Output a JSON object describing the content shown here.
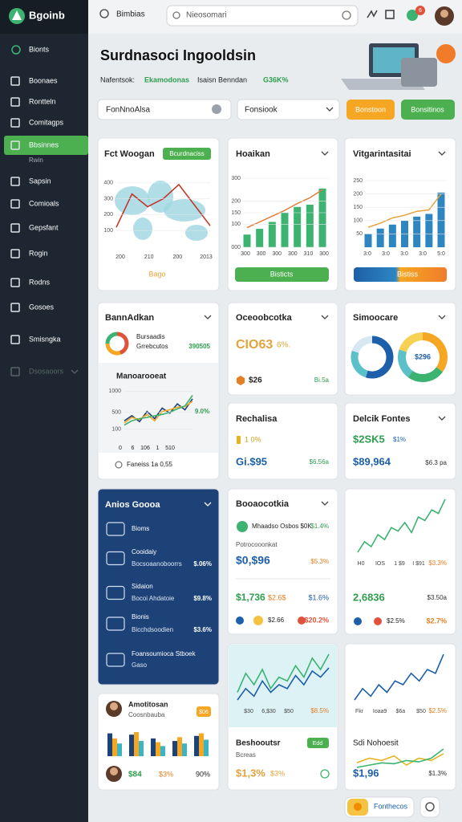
{
  "sidebar": {
    "brand": "Bgoinb",
    "items": [
      "Bionts",
      "Boonaes",
      "Rontteln",
      "Comitagps",
      "Bbsinnes",
      "Rwin",
      "Sapsin",
      "Comioals",
      "Gepsfant",
      "Rogin",
      "Rodns",
      "Gosoes",
      "Smisngka",
      "Dsosaoors"
    ]
  },
  "topbar": {
    "breadcrumb": "Bimbias",
    "search": "Nieosomari",
    "badge": "6"
  },
  "header": {
    "title": "Surdnasoci Ingooldsin",
    "label": "Nafentsok:",
    "tag": "Ekamodonas",
    "text": "Isaisn Benndan",
    "value": "G36K%"
  },
  "filters": {
    "select_1": "FonNnoAlsa",
    "select_2": "Fonsiook",
    "button_1": "Bonstoon",
    "button_2": "Bonsitinos"
  },
  "cards": [
    {
      "title": "Fct Woogan",
      "tag": "Bcurdnaciss",
      "footer": "Bago",
      "chart": {
        "type": "line",
        "series": [
          {
            "color": "#c0392b",
            "values": [
              120,
              330,
              250,
              300,
              390,
              260,
              130
            ]
          }
        ],
        "ylim": [
          50,
          450
        ],
        "yticks": [
          100,
          200,
          300,
          400
        ],
        "x_labels": [
          "200",
          "210",
          "200",
          "2013"
        ]
      }
    },
    {
      "title": "Hoaikan",
      "button": "Bisticts",
      "chart": {
        "type": "bar",
        "series": [
          {
            "type": "bar",
            "color": "#3cb371",
            "values": [
              55,
              80,
              110,
              150,
              175,
              185,
              255
            ]
          },
          {
            "type": "line",
            "color": "#e07b39",
            "values": [
              85,
              110,
              135,
              160,
              190,
              215,
              250
            ]
          }
        ],
        "ylim": [
          0,
          300
        ],
        "yticks": [
          {
            "value": 0,
            "label": "000"
          },
          100,
          150,
          200,
          300
        ],
        "x_labels": [
          "300",
          "300",
          "300",
          "300",
          "310",
          "300"
        ]
      }
    },
    {
      "title": "Vitgarintasitai",
      "button": "Bistiss",
      "chart": {
        "type": "bar",
        "series": [
          {
            "type": "bar",
            "color": "#2e86c1",
            "values": [
              50,
              70,
              85,
              100,
              115,
              125,
              205
            ]
          },
          {
            "type": "line",
            "color": "#e6a23c",
            "values": [
              75,
              90,
              110,
              120,
              135,
              140,
              200
            ]
          }
        ],
        "ylim": [
          0,
          250
        ],
        "yticks": [
          50,
          100,
          150,
          200,
          250
        ],
        "x_labels": [
          "3:0",
          "3:0",
          "3:0",
          "3:0",
          "5:0"
        ]
      }
    },
    {
      "title": "BannAdkan",
      "line_1": "Bursaadis",
      "line_2": "Grrebcutos",
      "value": "390505",
      "donut": {
        "values": [
          45,
          30,
          25
        ],
        "colors": [
          "#e0533a",
          "#f5a623",
          "#3cb371"
        ]
      },
      "subtitle": "Manoarooeat",
      "note": "9.0%",
      "footer": "Faneiss 1a 0,55",
      "chart": {
        "type": "line",
        "series": [
          {
            "color": "#1d4278",
            "values": [
              300,
              420,
              280,
              520,
              350,
              600,
              480,
              700,
              560,
              820
            ]
          },
          {
            "color": "#f5a623",
            "values": [
              250,
              380,
              330,
              450,
              300,
              520,
              560,
              620,
              640,
              760
            ]
          },
          {
            "color": "#3cb371",
            "values": [
              200,
              300,
              350,
              380,
              420,
              450,
              500,
              580,
              650,
              900
            ]
          }
        ],
        "ylim": [
          0,
          1100
        ],
        "yticks": [
          100,
          500,
          1000
        ],
        "x_labels": [
          "0",
          "6",
          "106",
          "1",
          "510"
        ]
      }
    },
    {
      "title": "Oceoobcotka",
      "big": "CIO63",
      "big_note": "6%.",
      "value": "$26",
      "value_note": "Bi.5a"
    },
    {
      "title": "Simoocare",
      "donut_1": {
        "values": [
          55,
          25,
          20
        ],
        "colors": [
          "#1d5fa8",
          "#5bc0c8",
          "#d6e9f2"
        ]
      },
      "donut_2": {
        "values": [
          35,
          25,
          20,
          20
        ],
        "colors": [
          "#f5a623",
          "#3cb371",
          "#5bc0c8",
          "#f7d154"
        ]
      },
      "center": "$296"
    },
    {
      "title": "Rechalisa",
      "note": "1 0%",
      "big": "Gi.$95",
      "value": "$6.56a"
    },
    {
      "title": "Delcik Fontes",
      "big_1": "$2SK5",
      "note_1": "$1%",
      "big_2": "$89,964",
      "note_2": "$6.3 pa"
    },
    {
      "title": "Anios Goooa",
      "rows": [
        {
          "title": "Bioms"
        },
        {
          "title": "Cooidaiy",
          "text": "Bocsoaanoboorrs",
          "value": "$.06%"
        },
        {
          "title": "Sidaion",
          "text": "Bocoi Ahdatoie",
          "value": "$9.8%"
        },
        {
          "title": "Bionis",
          "text": "Bicchdsoodien",
          "value": "$3.6%"
        },
        {
          "title": "Foansoumioca Stboek",
          "text": "Gaso"
        }
      ]
    },
    {
      "title": "Booaocotkia",
      "line": "Mhaadso Osbos $0K",
      "line_value": "$1.4%",
      "label": "Potrocooonkat",
      "big": "$0,$96",
      "big_note": "$5.3%",
      "v1": "$1,736",
      "v2": "$2.6$",
      "v3": "$1.6%",
      "v4": "$2.66",
      "v5": "$20.2%"
    },
    {
      "chart": {
        "type": "line",
        "series": [
          {
            "color": "#3cb371",
            "values": [
              20,
              35,
              28,
              45,
              38,
              55,
              50,
              62,
              48,
              70,
              65,
              80,
              75,
              95
            ]
          }
        ],
        "x_labels": [
          "H0",
          "IOS",
          "1 $9",
          "I $91"
        ]
      },
      "note": "$3.3%",
      "big": "2,6836",
      "big_note": "$3.50a",
      "v1": "$2.5%",
      "v2": "$2.7%"
    },
    {
      "chart": {
        "type": "line",
        "series": [
          {
            "color": "#3cb371",
            "values": [
              40,
              65,
              50,
              70,
              45,
              60,
              55,
              75,
              60,
              85,
              70,
              90
            ]
          },
          {
            "color": "#1d5fa8",
            "values": [
              30,
              45,
              35,
              55,
              40,
              50,
              45,
              62,
              50,
              68,
              60,
              72
            ]
          }
        ],
        "x_labels": [
          "$30",
          "6,$30",
          "$50"
        ]
      },
      "note": "$8.5%",
      "title": "Beshooutsr",
      "tag": "Edd",
      "text": "Bcreas",
      "big": "$1,3%",
      "big_note": "$3%"
    },
    {
      "chart": {
        "type": "line",
        "series": [
          {
            "color": "#1d5fa8",
            "values": [
              20,
              35,
              25,
              40,
              30,
              45,
              40,
              55,
              45,
              60,
              55,
              80
            ]
          }
        ],
        "x_labels": [
          "Fkr",
          "Ioaa9",
          "$6a",
          "$50"
        ]
      },
      "note": "$2.5%",
      "title": "Sdi Nohoesit",
      "chart_2": {
        "type": "line",
        "series": [
          {
            "color": "#e6b422",
            "values": [
              40,
              50,
              45,
              55,
              35,
              50,
              45,
              60
            ]
          },
          {
            "color": "#3cb371",
            "values": [
              30,
              35,
              40,
              38,
              45,
              42,
              50,
              70
            ]
          }
        ]
      },
      "big": "$1,96",
      "big_note": "$1.3%"
    },
    {
      "name": "Amotitosan",
      "role": "Coosnbauba",
      "tag": "$06",
      "chart": {
        "type": "bar",
        "series": [
          {
            "color": "#1d4278",
            "values": [
              90,
              85,
              70,
              60,
              80
            ]
          },
          {
            "color": "#f5a623",
            "values": [
              70,
              95,
              55,
              75,
              90
            ]
          },
          {
            "color": "#3cb4c4",
            "values": [
              50,
              60,
              40,
              50,
              65
            ]
          }
        ]
      },
      "v1": "$84",
      "v2": "$3%",
      "v3": "90%"
    }
  ],
  "pagination": {
    "label": "Fonthecos"
  }
}
